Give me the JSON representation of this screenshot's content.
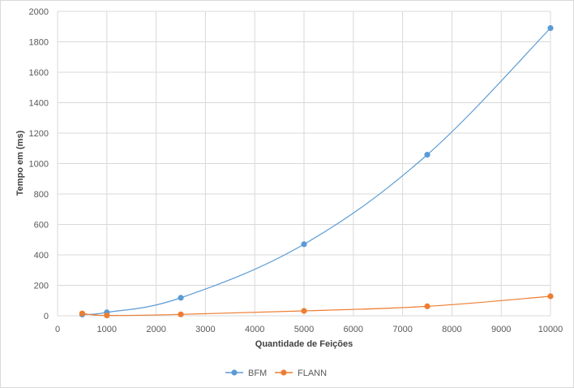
{
  "chart_data": {
    "type": "scatter",
    "title": "",
    "xlabel": "Quantidade  de Feições",
    "ylabel": "Tempo em (ms)",
    "xlim": [
      0,
      10000
    ],
    "ylim": [
      0,
      2000
    ],
    "x_ticks": [
      0,
      1000,
      2000,
      3000,
      4000,
      5000,
      6000,
      7000,
      8000,
      9000,
      10000
    ],
    "y_ticks": [
      0,
      200,
      400,
      600,
      800,
      1000,
      1200,
      1400,
      1600,
      1800,
      2000
    ],
    "grid": true,
    "legend_position": "bottom",
    "series": [
      {
        "name": "BFM",
        "color": "#5b9bd5",
        "x": [
          500,
          1000,
          2500,
          5000,
          7500,
          10000
        ],
        "y": [
          8,
          22,
          118,
          470,
          1058,
          1890
        ]
      },
      {
        "name": "FLANN",
        "color": "#ed7d31",
        "x": [
          500,
          1000,
          2500,
          5000,
          7500,
          10000
        ],
        "y": [
          15,
          2,
          9,
          32,
          62,
          128
        ]
      }
    ]
  }
}
